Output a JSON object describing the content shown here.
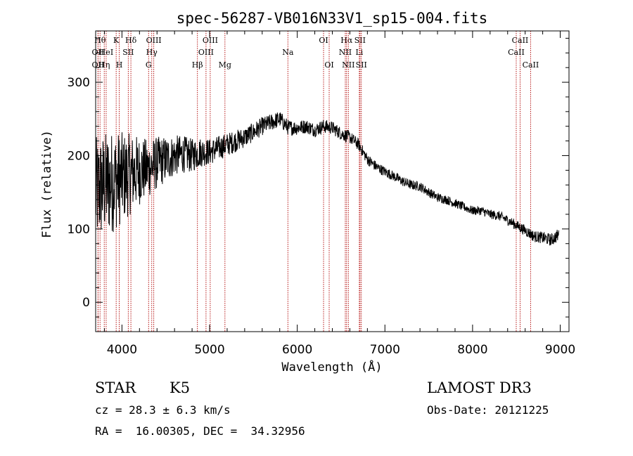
{
  "chart_data": {
    "type": "line",
    "title": "spec-56287-VB016N33V1_sp15-004.fits",
    "xlabel": "Wavelength (Å)",
    "ylabel": "Flux (relative)",
    "xlim": [
      3700,
      9100
    ],
    "ylim": [
      -40,
      370
    ],
    "x_ticks": [
      4000,
      5000,
      6000,
      7000,
      8000,
      9000
    ],
    "x_tick_labels": [
      "4000",
      "5000",
      "6000",
      "7000",
      "8000",
      "9000"
    ],
    "y_ticks": [
      0,
      100,
      200,
      300
    ],
    "y_tick_labels": [
      "0",
      "100",
      "200",
      "300"
    ],
    "grid": false,
    "series": [
      {
        "name": "flux",
        "continuum": [
          [
            3700,
            150
          ],
          [
            3800,
            160
          ],
          [
            3900,
            165
          ],
          [
            4000,
            170
          ],
          [
            4100,
            175
          ],
          [
            4200,
            180
          ],
          [
            4300,
            182
          ],
          [
            4400,
            190
          ],
          [
            4500,
            195
          ],
          [
            4600,
            200
          ],
          [
            4700,
            202
          ],
          [
            4800,
            200
          ],
          [
            4900,
            205
          ],
          [
            5000,
            205
          ],
          [
            5100,
            210
          ],
          [
            5200,
            215
          ],
          [
            5300,
            220
          ],
          [
            5400,
            225
          ],
          [
            5500,
            232
          ],
          [
            5600,
            240
          ],
          [
            5700,
            245
          ],
          [
            5800,
            250
          ],
          [
            5900,
            238
          ],
          [
            6000,
            238
          ],
          [
            6100,
            240
          ],
          [
            6200,
            235
          ],
          [
            6300,
            240
          ],
          [
            6400,
            238
          ],
          [
            6500,
            230
          ],
          [
            6600,
            225
          ],
          [
            6700,
            215
          ],
          [
            6800,
            195
          ],
          [
            6900,
            185
          ],
          [
            7000,
            178
          ],
          [
            7100,
            172
          ],
          [
            7200,
            165
          ],
          [
            7300,
            160
          ],
          [
            7400,
            158
          ],
          [
            7500,
            150
          ],
          [
            7600,
            143
          ],
          [
            7700,
            140
          ],
          [
            7800,
            135
          ],
          [
            7900,
            130
          ],
          [
            8000,
            125
          ],
          [
            8100,
            125
          ],
          [
            8200,
            120
          ],
          [
            8300,
            118
          ],
          [
            8400,
            112
          ],
          [
            8500,
            105
          ],
          [
            8600,
            98
          ],
          [
            8700,
            90
          ],
          [
            8800,
            88
          ],
          [
            8900,
            85
          ],
          [
            8980,
            92
          ]
        ],
        "noise_amplitude": [
          [
            3700,
            75
          ],
          [
            3900,
            70
          ],
          [
            4100,
            55
          ],
          [
            4300,
            40
          ],
          [
            4600,
            28
          ],
          [
            5000,
            18
          ],
          [
            5500,
            13
          ],
          [
            6000,
            10
          ],
          [
            6500,
            9
          ],
          [
            7000,
            7
          ],
          [
            8000,
            6
          ],
          [
            8500,
            7
          ],
          [
            9000,
            9
          ]
        ]
      }
    ],
    "line_markers": [
      {
        "wavelength": 3750,
        "label": "Hθ",
        "row": 0
      },
      {
        "wavelength": 3727,
        "label": "OII",
        "row": 1
      },
      {
        "wavelength": 3727,
        "label": "OII",
        "row": 2
      },
      {
        "wavelength": 3798,
        "label": "Hη",
        "row": 2
      },
      {
        "wavelength": 3820,
        "label": "HeI",
        "row": 1
      },
      {
        "wavelength": 3934,
        "label": "K",
        "row": 0
      },
      {
        "wavelength": 3969,
        "label": "H",
        "row": 2
      },
      {
        "wavelength": 4072,
        "label": "SII",
        "row": 1
      },
      {
        "wavelength": 4102,
        "label": "Hδ",
        "row": 0
      },
      {
        "wavelength": 4340,
        "label": "Hγ",
        "row": 1
      },
      {
        "wavelength": 4304,
        "label": "G",
        "row": 2
      },
      {
        "wavelength": 4363,
        "label": "OIII",
        "row": 0
      },
      {
        "wavelength": 4861,
        "label": "Hβ",
        "row": 2
      },
      {
        "wavelength": 5007,
        "label": "OIII",
        "row": 0
      },
      {
        "wavelength": 4959,
        "label": "OIII",
        "row": 1
      },
      {
        "wavelength": 5175,
        "label": "Mg",
        "row": 2
      },
      {
        "wavelength": 5893,
        "label": "Na",
        "row": 1
      },
      {
        "wavelength": 6300,
        "label": "OI",
        "row": 0
      },
      {
        "wavelength": 6364,
        "label": "OI",
        "row": 2
      },
      {
        "wavelength": 6563,
        "label": "Hα",
        "row": 0
      },
      {
        "wavelength": 6548,
        "label": "NII",
        "row": 1
      },
      {
        "wavelength": 6583,
        "label": "NII",
        "row": 2
      },
      {
        "wavelength": 6716,
        "label": "SII",
        "row": 0
      },
      {
        "wavelength": 6708,
        "label": "Li",
        "row": 1
      },
      {
        "wavelength": 6731,
        "label": "SII",
        "row": 2
      },
      {
        "wavelength": 8542,
        "label": "CaII",
        "row": 0
      },
      {
        "wavelength": 8498,
        "label": "CaII",
        "row": 1
      },
      {
        "wavelength": 8662,
        "label": "CaII",
        "row": 2
      }
    ],
    "colors": {
      "spectrum": "#000000",
      "marker_line": "#b00000",
      "axes": "#000000"
    }
  },
  "info": {
    "class_label": "STAR",
    "subclass": "K5",
    "survey": "LAMOST DR3",
    "cz": "cz = 28.3 ± 6.3 km/s",
    "obs_date": "Obs-Date: 20121225",
    "radec": "RA =  16.00305, DEC =  34.32956"
  }
}
